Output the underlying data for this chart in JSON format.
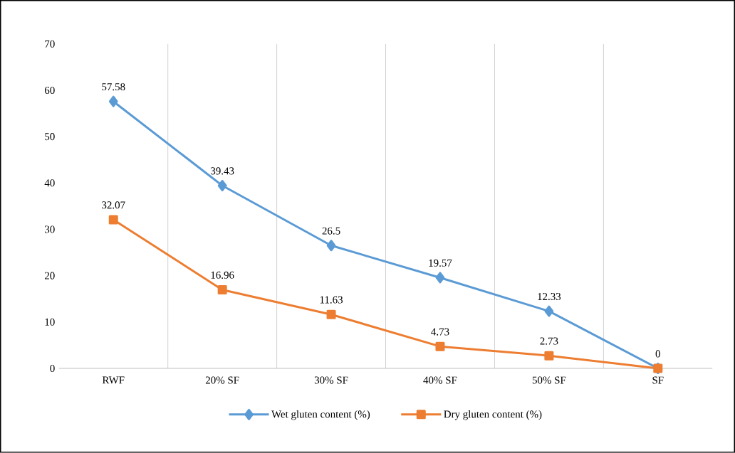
{
  "chart_data": {
    "type": "line",
    "categories": [
      "RWF",
      "20% SF",
      "30% SF",
      "40% SF",
      "50% SF",
      "SF"
    ],
    "series": [
      {
        "name": "Wet gluten content (%)",
        "color": "#5b9bd5",
        "marker": "diamond",
        "values": [
          57.58,
          39.43,
          26.5,
          19.57,
          12.33,
          0
        ],
        "value_labels": [
          "57.58",
          "39.43",
          "26.5",
          "19.57",
          "12.33",
          "0"
        ]
      },
      {
        "name": "Dry gluten content (%)",
        "color": "#ed7d31",
        "marker": "square",
        "values": [
          32.07,
          16.96,
          11.63,
          4.73,
          2.73,
          0
        ],
        "value_labels": [
          "32.07",
          "16.96",
          "11.63",
          "4.73",
          "2.73",
          null
        ]
      }
    ],
    "ylim": [
      0,
      70
    ],
    "yticks": [
      0,
      10,
      20,
      30,
      40,
      50,
      60,
      70
    ],
    "grid": "x",
    "legend": "bottom",
    "line_style": "solid"
  }
}
